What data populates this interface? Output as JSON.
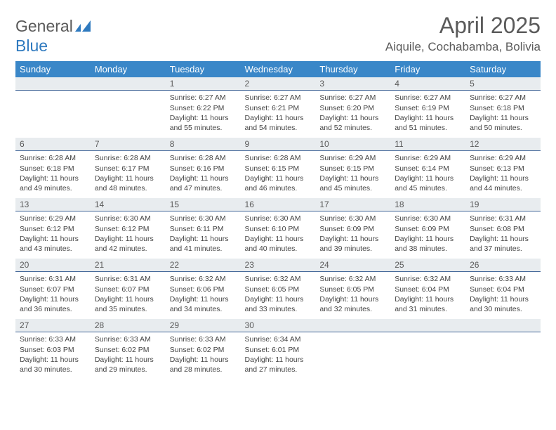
{
  "logo": {
    "text1": "General",
    "text2": "Blue"
  },
  "title": "April 2025",
  "location": "Aiquile, Cochabamba, Bolivia",
  "colors": {
    "header_bg": "#3a87c8",
    "daynum_bg": "#e8ecef",
    "daynum_border": "#46699a",
    "text_grey": "#5a5a5a",
    "logo_blue": "#2f7abf"
  },
  "weekdays": [
    "Sunday",
    "Monday",
    "Tuesday",
    "Wednesday",
    "Thursday",
    "Friday",
    "Saturday"
  ],
  "grid": [
    [
      null,
      null,
      {
        "n": "1",
        "sr": "6:27 AM",
        "ss": "6:22 PM",
        "dl": "11 hours and 55 minutes."
      },
      {
        "n": "2",
        "sr": "6:27 AM",
        "ss": "6:21 PM",
        "dl": "11 hours and 54 minutes."
      },
      {
        "n": "3",
        "sr": "6:27 AM",
        "ss": "6:20 PM",
        "dl": "11 hours and 52 minutes."
      },
      {
        "n": "4",
        "sr": "6:27 AM",
        "ss": "6:19 PM",
        "dl": "11 hours and 51 minutes."
      },
      {
        "n": "5",
        "sr": "6:27 AM",
        "ss": "6:18 PM",
        "dl": "11 hours and 50 minutes."
      }
    ],
    [
      {
        "n": "6",
        "sr": "6:28 AM",
        "ss": "6:18 PM",
        "dl": "11 hours and 49 minutes."
      },
      {
        "n": "7",
        "sr": "6:28 AM",
        "ss": "6:17 PM",
        "dl": "11 hours and 48 minutes."
      },
      {
        "n": "8",
        "sr": "6:28 AM",
        "ss": "6:16 PM",
        "dl": "11 hours and 47 minutes."
      },
      {
        "n": "9",
        "sr": "6:28 AM",
        "ss": "6:15 PM",
        "dl": "11 hours and 46 minutes."
      },
      {
        "n": "10",
        "sr": "6:29 AM",
        "ss": "6:15 PM",
        "dl": "11 hours and 45 minutes."
      },
      {
        "n": "11",
        "sr": "6:29 AM",
        "ss": "6:14 PM",
        "dl": "11 hours and 45 minutes."
      },
      {
        "n": "12",
        "sr": "6:29 AM",
        "ss": "6:13 PM",
        "dl": "11 hours and 44 minutes."
      }
    ],
    [
      {
        "n": "13",
        "sr": "6:29 AM",
        "ss": "6:12 PM",
        "dl": "11 hours and 43 minutes."
      },
      {
        "n": "14",
        "sr": "6:30 AM",
        "ss": "6:12 PM",
        "dl": "11 hours and 42 minutes."
      },
      {
        "n": "15",
        "sr": "6:30 AM",
        "ss": "6:11 PM",
        "dl": "11 hours and 41 minutes."
      },
      {
        "n": "16",
        "sr": "6:30 AM",
        "ss": "6:10 PM",
        "dl": "11 hours and 40 minutes."
      },
      {
        "n": "17",
        "sr": "6:30 AM",
        "ss": "6:09 PM",
        "dl": "11 hours and 39 minutes."
      },
      {
        "n": "18",
        "sr": "6:30 AM",
        "ss": "6:09 PM",
        "dl": "11 hours and 38 minutes."
      },
      {
        "n": "19",
        "sr": "6:31 AM",
        "ss": "6:08 PM",
        "dl": "11 hours and 37 minutes."
      }
    ],
    [
      {
        "n": "20",
        "sr": "6:31 AM",
        "ss": "6:07 PM",
        "dl": "11 hours and 36 minutes."
      },
      {
        "n": "21",
        "sr": "6:31 AM",
        "ss": "6:07 PM",
        "dl": "11 hours and 35 minutes."
      },
      {
        "n": "22",
        "sr": "6:32 AM",
        "ss": "6:06 PM",
        "dl": "11 hours and 34 minutes."
      },
      {
        "n": "23",
        "sr": "6:32 AM",
        "ss": "6:05 PM",
        "dl": "11 hours and 33 minutes."
      },
      {
        "n": "24",
        "sr": "6:32 AM",
        "ss": "6:05 PM",
        "dl": "11 hours and 32 minutes."
      },
      {
        "n": "25",
        "sr": "6:32 AM",
        "ss": "6:04 PM",
        "dl": "11 hours and 31 minutes."
      },
      {
        "n": "26",
        "sr": "6:33 AM",
        "ss": "6:04 PM",
        "dl": "11 hours and 30 minutes."
      }
    ],
    [
      {
        "n": "27",
        "sr": "6:33 AM",
        "ss": "6:03 PM",
        "dl": "11 hours and 30 minutes."
      },
      {
        "n": "28",
        "sr": "6:33 AM",
        "ss": "6:02 PM",
        "dl": "11 hours and 29 minutes."
      },
      {
        "n": "29",
        "sr": "6:33 AM",
        "ss": "6:02 PM",
        "dl": "11 hours and 28 minutes."
      },
      {
        "n": "30",
        "sr": "6:34 AM",
        "ss": "6:01 PM",
        "dl": "11 hours and 27 minutes."
      },
      null,
      null,
      null
    ]
  ],
  "labels": {
    "sunrise": "Sunrise:",
    "sunset": "Sunset:",
    "daylight": "Daylight:"
  }
}
